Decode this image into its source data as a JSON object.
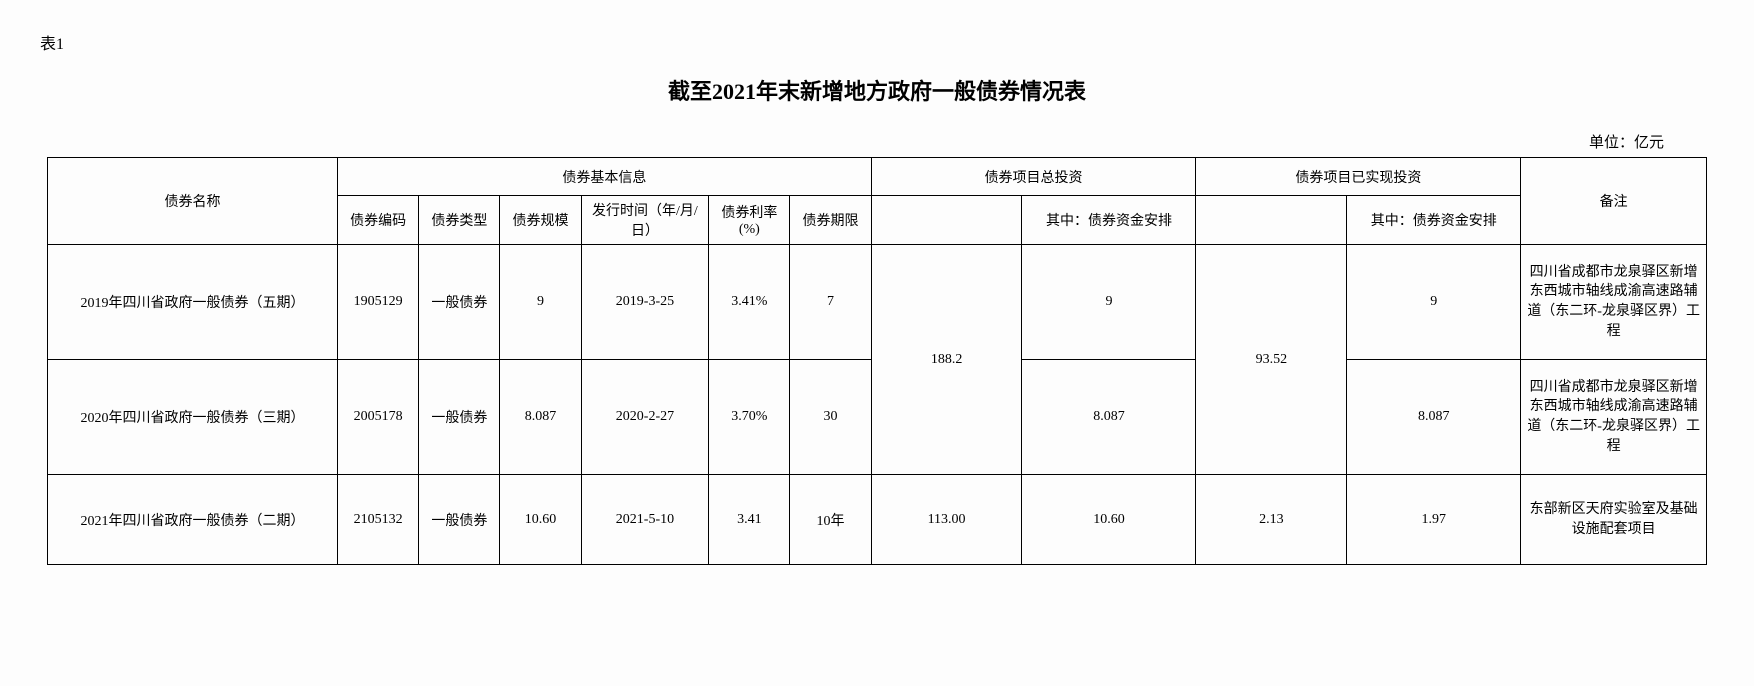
{
  "tableLabel": "表1",
  "title": "截至2021年末新增地方政府一般债券情况表",
  "unit": "单位：亿元",
  "headers": {
    "bondName": "债券名称",
    "basicInfo": "债券基本信息",
    "totalInvest": "债券项目总投资",
    "realizedInvest": "债券项目已实现投资",
    "remarks": "备注",
    "bondCode": "债券编码",
    "bondType": "债券类型",
    "bondScale": "债券规模",
    "issueDate": "发行时间（年/月/日）",
    "rate": "债券利率(%)",
    "term": "债券期限",
    "fundArrange": "其中：债券资金安排",
    "fundArrange2": "其中：债券资金安排"
  },
  "rows": [
    {
      "name": "2019年四川省政府一般债券（五期）",
      "code": "1905129",
      "type": "一般债券",
      "scale": "9",
      "date": "2019-3-25",
      "rate": "3.41%",
      "term": "7",
      "totalInvest": "188.2",
      "totalFund": "9",
      "realizedInvest": "93.52",
      "realizedFund": "9",
      "remark": "四川省成都市龙泉驿区新增东西城市轴线成渝高速路辅道（东二环-龙泉驿区界）工程"
    },
    {
      "name": "2020年四川省政府一般债券（三期）",
      "code": "2005178",
      "type": "一般债券",
      "scale": "8.087",
      "date": "2020-2-27",
      "rate": "3.70%",
      "term": "30",
      "totalFund": "8.087",
      "realizedFund": "8.087",
      "remark": "四川省成都市龙泉驿区新增东西城市轴线成渝高速路辅道（东二环-龙泉驿区界）工程"
    },
    {
      "name": "2021年四川省政府一般债券（二期）",
      "code": "2105132",
      "type": "一般债券",
      "scale": "10.60",
      "date": "2021-5-10",
      "rate": "3.41",
      "term": "10年",
      "totalInvest": "113.00",
      "totalFund": "10.60",
      "realizedInvest": "2.13",
      "realizedFund": "1.97",
      "remark": "东部新区天府实验室及基础设施配套项目"
    }
  ]
}
